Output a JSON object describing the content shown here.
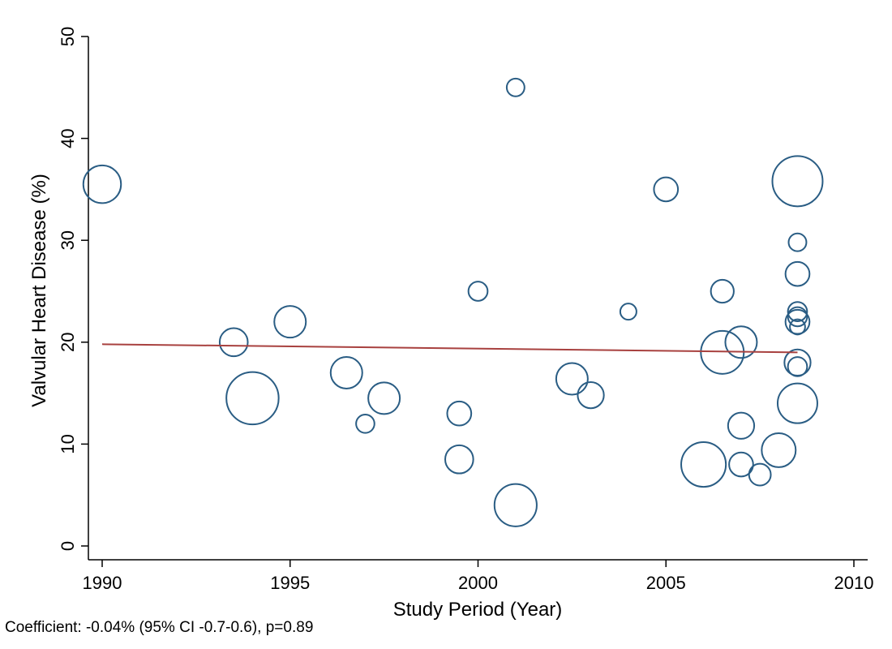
{
  "chart_data": {
    "type": "scatter",
    "subtype": "bubble",
    "xlabel": "Study Period (Year)",
    "ylabel": "Valvular Heart Disease (%)",
    "xlim": [
      1990,
      2010
    ],
    "ylim": [
      0,
      50
    ],
    "xticks": [
      1990,
      1995,
      2000,
      2005,
      2010
    ],
    "yticks": [
      0,
      10,
      20,
      30,
      40,
      50
    ],
    "grid": false,
    "marker_color": "#2a5d84",
    "fit_line_color": "#a8413f",
    "points": [
      {
        "x": 1990,
        "y": 35.5,
        "size": 1.35
      },
      {
        "x": 1993.5,
        "y": 20,
        "size": 0.75
      },
      {
        "x": 1994,
        "y": 14.5,
        "size": 2.6
      },
      {
        "x": 1995,
        "y": 22,
        "size": 0.95
      },
      {
        "x": 1996.5,
        "y": 17,
        "size": 0.95
      },
      {
        "x": 1997,
        "y": 12,
        "size": 0.32
      },
      {
        "x": 1997.5,
        "y": 14.5,
        "size": 0.95
      },
      {
        "x": 1999.5,
        "y": 13,
        "size": 0.55
      },
      {
        "x": 1999.5,
        "y": 8.5,
        "size": 0.75
      },
      {
        "x": 2000,
        "y": 25,
        "size": 0.35
      },
      {
        "x": 2001,
        "y": 45,
        "size": 0.3
      },
      {
        "x": 2001,
        "y": 4,
        "size": 1.7
      },
      {
        "x": 2002.5,
        "y": 16.4,
        "size": 0.95
      },
      {
        "x": 2003,
        "y": 14.8,
        "size": 0.65
      },
      {
        "x": 2004,
        "y": 23,
        "size": 0.25
      },
      {
        "x": 2005,
        "y": 35,
        "size": 0.55
      },
      {
        "x": 2006,
        "y": 8,
        "size": 1.9
      },
      {
        "x": 2006.5,
        "y": 25,
        "size": 0.5
      },
      {
        "x": 2006.5,
        "y": 19,
        "size": 1.75
      },
      {
        "x": 2007,
        "y": 20,
        "size": 0.95
      },
      {
        "x": 2007,
        "y": 11.8,
        "size": 0.65
      },
      {
        "x": 2007,
        "y": 8,
        "size": 0.55
      },
      {
        "x": 2007.5,
        "y": 7,
        "size": 0.45
      },
      {
        "x": 2008,
        "y": 9.4,
        "size": 1.1
      },
      {
        "x": 2008.5,
        "y": 35.8,
        "size": 2.4
      },
      {
        "x": 2008.5,
        "y": 29.8,
        "size": 0.3
      },
      {
        "x": 2008.5,
        "y": 26.7,
        "size": 0.55
      },
      {
        "x": 2008.5,
        "y": 23,
        "size": 0.35
      },
      {
        "x": 2008.5,
        "y": 22.5,
        "size": 0.35
      },
      {
        "x": 2008.5,
        "y": 22,
        "size": 0.55
      },
      {
        "x": 2008.5,
        "y": 21.5,
        "size": 0.22
      },
      {
        "x": 2008.5,
        "y": 18,
        "size": 0.65
      },
      {
        "x": 2008.5,
        "y": 17.6,
        "size": 0.35
      },
      {
        "x": 2008.5,
        "y": 14,
        "size": 1.5
      }
    ],
    "fit_line": {
      "x": [
        1990,
        2008.5
      ],
      "y": [
        19.8,
        19.0
      ]
    },
    "annotation": "Coefficient: -0.04% (95% CI -0.7-0.6), p=0.89"
  }
}
